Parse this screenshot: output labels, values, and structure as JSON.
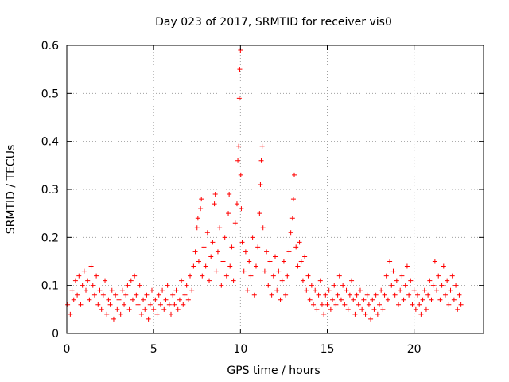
{
  "chart_data": {
    "type": "scatter",
    "title": "Day 023 of 2017, SRMTID for receiver vis0",
    "xlabel": "GPS time / hours",
    "ylabel": "SRMTID / TECUs",
    "xlim": [
      0,
      24
    ],
    "ylim": [
      0,
      0.6
    ],
    "x_ticks": [
      0,
      5,
      10,
      15,
      20
    ],
    "x_tick_labels": [
      "0",
      "5",
      "10",
      "15",
      "20"
    ],
    "y_ticks": [
      0,
      0.1,
      0.2,
      0.3,
      0.4,
      0.5,
      0.6
    ],
    "y_tick_labels": [
      "0",
      "0.1",
      "0.2",
      "0.3",
      "0.4",
      "0.5",
      "0.6"
    ],
    "grid": true,
    "marker": "plus",
    "series": [
      {
        "name": "vis0",
        "color": "#ff0000",
        "points": [
          [
            0.05,
            0.06
          ],
          [
            0.2,
            0.04
          ],
          [
            0.3,
            0.09
          ],
          [
            0.4,
            0.07
          ],
          [
            0.5,
            0.11
          ],
          [
            0.6,
            0.08
          ],
          [
            0.7,
            0.12
          ],
          [
            0.8,
            0.06
          ],
          [
            0.9,
            0.1
          ],
          [
            1.0,
            0.13
          ],
          [
            1.1,
            0.09
          ],
          [
            1.2,
            0.11
          ],
          [
            1.3,
            0.07
          ],
          [
            1.4,
            0.14
          ],
          [
            1.5,
            0.1
          ],
          [
            1.6,
            0.08
          ],
          [
            1.7,
            0.12
          ],
          [
            1.8,
            0.06
          ],
          [
            1.9,
            0.09
          ],
          [
            2.0,
            0.05
          ],
          [
            2.1,
            0.08
          ],
          [
            2.2,
            0.11
          ],
          [
            2.3,
            0.04
          ],
          [
            2.4,
            0.07
          ],
          [
            2.5,
            0.06
          ],
          [
            2.6,
            0.09
          ],
          [
            2.7,
            0.03
          ],
          [
            2.8,
            0.08
          ],
          [
            2.9,
            0.05
          ],
          [
            3.0,
            0.07
          ],
          [
            3.1,
            0.04
          ],
          [
            3.2,
            0.09
          ],
          [
            3.3,
            0.06
          ],
          [
            3.4,
            0.08
          ],
          [
            3.5,
            0.1
          ],
          [
            3.6,
            0.05
          ],
          [
            3.7,
            0.11
          ],
          [
            3.8,
            0.07
          ],
          [
            3.9,
            0.12
          ],
          [
            4.0,
            0.08
          ],
          [
            4.1,
            0.06
          ],
          [
            4.2,
            0.1
          ],
          [
            4.3,
            0.04
          ],
          [
            4.4,
            0.07
          ],
          [
            4.5,
            0.05
          ],
          [
            4.6,
            0.08
          ],
          [
            4.7,
            0.03
          ],
          [
            4.8,
            0.06
          ],
          [
            4.9,
            0.09
          ],
          [
            5.0,
            0.05
          ],
          [
            5.1,
            0.07
          ],
          [
            5.2,
            0.04
          ],
          [
            5.3,
            0.08
          ],
          [
            5.4,
            0.06
          ],
          [
            5.5,
            0.09
          ],
          [
            5.6,
            0.05
          ],
          [
            5.7,
            0.07
          ],
          [
            5.8,
            0.1
          ],
          [
            5.9,
            0.06
          ],
          [
            6.0,
            0.04
          ],
          [
            6.1,
            0.08
          ],
          [
            6.2,
            0.06
          ],
          [
            6.3,
            0.09
          ],
          [
            6.4,
            0.05
          ],
          [
            6.5,
            0.07
          ],
          [
            6.6,
            0.11
          ],
          [
            6.7,
            0.06
          ],
          [
            6.8,
            0.08
          ],
          [
            6.9,
            0.1
          ],
          [
            7.0,
            0.07
          ],
          [
            7.1,
            0.12
          ],
          [
            7.2,
            0.09
          ],
          [
            7.3,
            0.14
          ],
          [
            7.4,
            0.17
          ],
          [
            7.5,
            0.22
          ],
          [
            7.55,
            0.24
          ],
          [
            7.6,
            0.15
          ],
          [
            7.7,
            0.26
          ],
          [
            7.75,
            0.28
          ],
          [
            7.8,
            0.12
          ],
          [
            7.9,
            0.18
          ],
          [
            8.0,
            0.14
          ],
          [
            8.1,
            0.21
          ],
          [
            8.2,
            0.11
          ],
          [
            8.3,
            0.16
          ],
          [
            8.4,
            0.19
          ],
          [
            8.5,
            0.27
          ],
          [
            8.55,
            0.29
          ],
          [
            8.6,
            0.13
          ],
          [
            8.7,
            0.17
          ],
          [
            8.8,
            0.22
          ],
          [
            8.9,
            0.1
          ],
          [
            9.0,
            0.15
          ],
          [
            9.1,
            0.2
          ],
          [
            9.2,
            0.12
          ],
          [
            9.3,
            0.25
          ],
          [
            9.35,
            0.29
          ],
          [
            9.4,
            0.14
          ],
          [
            9.5,
            0.18
          ],
          [
            9.6,
            0.11
          ],
          [
            9.7,
            0.23
          ],
          [
            9.8,
            0.27
          ],
          [
            9.85,
            0.36
          ],
          [
            9.9,
            0.39
          ],
          [
            9.93,
            0.49
          ],
          [
            9.96,
            0.55
          ],
          [
            10.0,
            0.59
          ],
          [
            10.02,
            0.33
          ],
          [
            10.05,
            0.26
          ],
          [
            10.1,
            0.19
          ],
          [
            10.2,
            0.13
          ],
          [
            10.3,
            0.17
          ],
          [
            10.4,
            0.09
          ],
          [
            10.5,
            0.15
          ],
          [
            10.6,
            0.12
          ],
          [
            10.7,
            0.2
          ],
          [
            10.8,
            0.08
          ],
          [
            10.9,
            0.14
          ],
          [
            11.0,
            0.18
          ],
          [
            11.1,
            0.25
          ],
          [
            11.15,
            0.31
          ],
          [
            11.2,
            0.36
          ],
          [
            11.25,
            0.39
          ],
          [
            11.3,
            0.22
          ],
          [
            11.4,
            0.13
          ],
          [
            11.5,
            0.17
          ],
          [
            11.6,
            0.1
          ],
          [
            11.7,
            0.15
          ],
          [
            11.8,
            0.08
          ],
          [
            11.9,
            0.12
          ],
          [
            12.0,
            0.16
          ],
          [
            12.1,
            0.09
          ],
          [
            12.2,
            0.13
          ],
          [
            12.3,
            0.07
          ],
          [
            12.4,
            0.11
          ],
          [
            12.5,
            0.15
          ],
          [
            12.6,
            0.08
          ],
          [
            12.7,
            0.12
          ],
          [
            12.8,
            0.17
          ],
          [
            12.9,
            0.21
          ],
          [
            13.0,
            0.24
          ],
          [
            13.05,
            0.28
          ],
          [
            13.1,
            0.33
          ],
          [
            13.2,
            0.18
          ],
          [
            13.3,
            0.14
          ],
          [
            13.4,
            0.19
          ],
          [
            13.5,
            0.15
          ],
          [
            13.6,
            0.11
          ],
          [
            13.7,
            0.16
          ],
          [
            13.8,
            0.09
          ],
          [
            13.9,
            0.12
          ],
          [
            14.0,
            0.07
          ],
          [
            14.1,
            0.1
          ],
          [
            14.2,
            0.06
          ],
          [
            14.3,
            0.09
          ],
          [
            14.4,
            0.05
          ],
          [
            14.5,
            0.08
          ],
          [
            14.6,
            0.11
          ],
          [
            14.7,
            0.06
          ],
          [
            14.8,
            0.04
          ],
          [
            14.9,
            0.08
          ],
          [
            15.0,
            0.06
          ],
          [
            15.1,
            0.09
          ],
          [
            15.2,
            0.05
          ],
          [
            15.3,
            0.07
          ],
          [
            15.4,
            0.1
          ],
          [
            15.5,
            0.06
          ],
          [
            15.6,
            0.08
          ],
          [
            15.7,
            0.12
          ],
          [
            15.8,
            0.07
          ],
          [
            15.9,
            0.1
          ],
          [
            16.0,
            0.06
          ],
          [
            16.1,
            0.09
          ],
          [
            16.2,
            0.05
          ],
          [
            16.3,
            0.08
          ],
          [
            16.4,
            0.11
          ],
          [
            16.5,
            0.07
          ],
          [
            16.6,
            0.04
          ],
          [
            16.7,
            0.08
          ],
          [
            16.8,
            0.06
          ],
          [
            16.9,
            0.09
          ],
          [
            17.0,
            0.05
          ],
          [
            17.1,
            0.07
          ],
          [
            17.2,
            0.04
          ],
          [
            17.3,
            0.08
          ],
          [
            17.4,
            0.06
          ],
          [
            17.5,
            0.03
          ],
          [
            17.6,
            0.07
          ],
          [
            17.7,
            0.05
          ],
          [
            17.8,
            0.08
          ],
          [
            17.9,
            0.04
          ],
          [
            18.0,
            0.06
          ],
          [
            18.1,
            0.09
          ],
          [
            18.2,
            0.05
          ],
          [
            18.3,
            0.08
          ],
          [
            18.4,
            0.12
          ],
          [
            18.5,
            0.07
          ],
          [
            18.6,
            0.15
          ],
          [
            18.7,
            0.1
          ],
          [
            18.8,
            0.13
          ],
          [
            18.9,
            0.08
          ],
          [
            19.0,
            0.11
          ],
          [
            19.1,
            0.06
          ],
          [
            19.2,
            0.09
          ],
          [
            19.3,
            0.12
          ],
          [
            19.4,
            0.07
          ],
          [
            19.5,
            0.1
          ],
          [
            19.6,
            0.14
          ],
          [
            19.7,
            0.08
          ],
          [
            19.8,
            0.11
          ],
          [
            19.9,
            0.06
          ],
          [
            20.0,
            0.09
          ],
          [
            20.1,
            0.05
          ],
          [
            20.2,
            0.08
          ],
          [
            20.3,
            0.06
          ],
          [
            20.4,
            0.04
          ],
          [
            20.5,
            0.07
          ],
          [
            20.6,
            0.09
          ],
          [
            20.7,
            0.05
          ],
          [
            20.8,
            0.08
          ],
          [
            20.9,
            0.11
          ],
          [
            21.0,
            0.07
          ],
          [
            21.1,
            0.1
          ],
          [
            21.2,
            0.15
          ],
          [
            21.3,
            0.09
          ],
          [
            21.4,
            0.12
          ],
          [
            21.5,
            0.07
          ],
          [
            21.6,
            0.1
          ],
          [
            21.7,
            0.14
          ],
          [
            21.8,
            0.08
          ],
          [
            21.9,
            0.11
          ],
          [
            22.0,
            0.06
          ],
          [
            22.1,
            0.09
          ],
          [
            22.2,
            0.12
          ],
          [
            22.3,
            0.07
          ],
          [
            22.4,
            0.1
          ],
          [
            22.5,
            0.05
          ],
          [
            22.6,
            0.08
          ],
          [
            22.7,
            0.06
          ]
        ]
      }
    ]
  }
}
